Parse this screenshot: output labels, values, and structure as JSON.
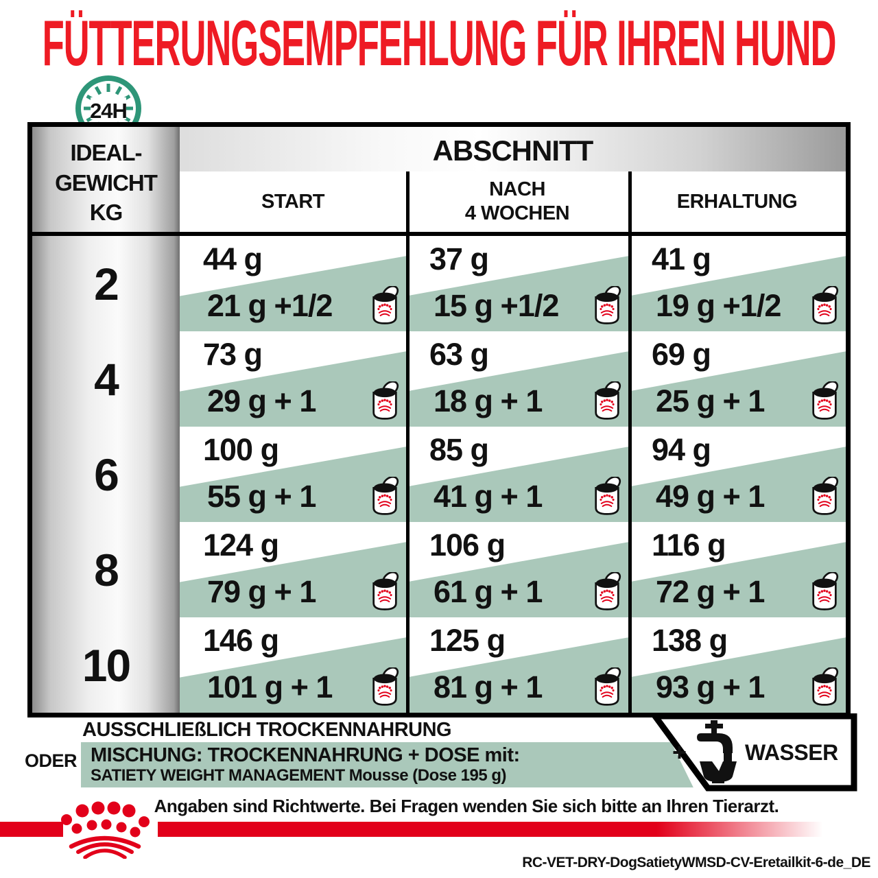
{
  "title": "FÜTTERUNGSEMPFEHLUNG FÜR IHREN HUND",
  "clock_label": "24H",
  "table": {
    "weight_header": {
      "line1": "IDEAL-",
      "line2": "GEWICHT",
      "line3": "KG"
    },
    "section_header": "ABSCHNITT",
    "columns": [
      {
        "label": "START",
        "label2": ""
      },
      {
        "label": "NACH",
        "label2": "4 WOCHEN"
      },
      {
        "label": "ERHALTUNG",
        "label2": ""
      }
    ],
    "rows": [
      {
        "weight": "2",
        "cells": [
          {
            "dry": "44 g",
            "mix": "21 g +1/2"
          },
          {
            "dry": "37 g",
            "mix": "15 g +1/2"
          },
          {
            "dry": "41 g",
            "mix": "19 g +1/2"
          }
        ]
      },
      {
        "weight": "4",
        "cells": [
          {
            "dry": "73 g",
            "mix": "29 g + 1"
          },
          {
            "dry": "63 g",
            "mix": "18 g + 1"
          },
          {
            "dry": "69 g",
            "mix": "25 g + 1"
          }
        ]
      },
      {
        "weight": "6",
        "cells": [
          {
            "dry": "100 g",
            "mix": "55 g + 1"
          },
          {
            "dry": "85 g",
            "mix": "41 g + 1"
          },
          {
            "dry": "94 g",
            "mix": "49 g + 1"
          }
        ]
      },
      {
        "weight": "8",
        "cells": [
          {
            "dry": "124 g",
            "mix": "79 g + 1"
          },
          {
            "dry": "106 g",
            "mix": "61 g + 1"
          },
          {
            "dry": "116 g",
            "mix": "72 g + 1"
          }
        ]
      },
      {
        "weight": "10",
        "cells": [
          {
            "dry": "146 g",
            "mix": "101 g + 1"
          },
          {
            "dry": "125 g",
            "mix": "81 g + 1"
          },
          {
            "dry": "138 g",
            "mix": "93 g + 1"
          }
        ]
      }
    ]
  },
  "legend": {
    "dry_only": "AUSSCHLIEßLICH TROCKENNAHRUNG",
    "or": "ODER",
    "mix_line1": "MISCHUNG: TROCKENNAHRUNG + DOSE mit:",
    "mix_line2": "SATIETY WEIGHT MANAGEMENT Mousse (Dose 195 g)",
    "plus": "+",
    "water": "WASSER"
  },
  "footer": {
    "note": "Angaben sind Richtwerte. Bei Fragen wenden Sie sich bitte an Ihren Tierarzt.",
    "code": "RC-VET-DRY-DogSatietyWMSD-CV-Eretailkit-6-de_DE"
  },
  "colors": {
    "title_red": "#ee1b24",
    "brand_red": "#e2001a",
    "sage_green": "#aac8ba",
    "clock_teal": "#2e9678"
  }
}
